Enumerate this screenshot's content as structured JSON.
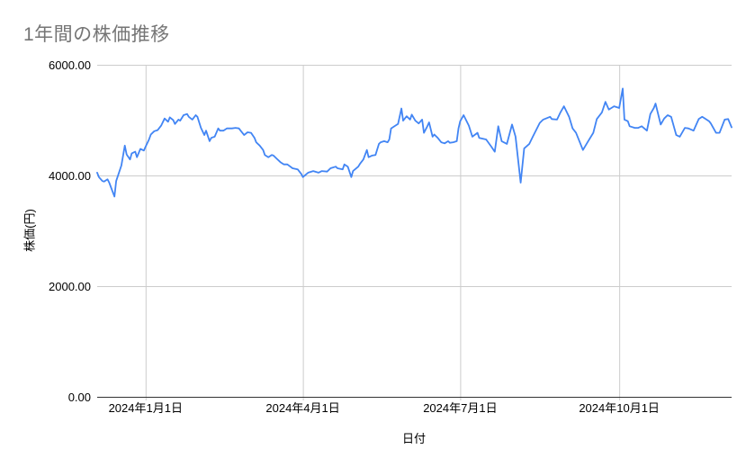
{
  "page": {
    "background_color": "#ffffff"
  },
  "chart_data": {
    "type": "line",
    "title": "1年間の株価推移",
    "xlabel": "日付",
    "ylabel": "株価(円)",
    "ylim": [
      0,
      6000
    ],
    "grid": true,
    "legend": false,
    "colors": {
      "series_line": "#4285f4",
      "title_text": "#757575",
      "axis_text": "#000000",
      "gridline": "#cccccc",
      "baseline_axis": "#333333"
    },
    "y_ticks": [
      {
        "value": 0,
        "label": "0.00"
      },
      {
        "value": 2000,
        "label": "2000.00"
      },
      {
        "value": 4000,
        "label": "4000.00"
      },
      {
        "value": 6000,
        "label": "6000.00"
      }
    ],
    "x_axis": {
      "domain_days": [
        0,
        367
      ],
      "start_date": "2023-12-04",
      "end_date": "2024-12-04",
      "ticks": [
        {
          "day": 28,
          "label": "2024年1月1日"
        },
        {
          "day": 119,
          "label": "2024年4月1日"
        },
        {
          "day": 210,
          "label": "2024年7月1日"
        },
        {
          "day": 302,
          "label": "2024年10月1日"
        }
      ]
    },
    "series": [
      {
        "name": "株価",
        "points_day_value": [
          [
            0,
            4050
          ],
          [
            1,
            3970
          ],
          [
            3,
            3900
          ],
          [
            4,
            3890
          ],
          [
            6,
            3930
          ],
          [
            7,
            3870
          ],
          [
            9,
            3700
          ],
          [
            10,
            3620
          ],
          [
            11,
            3900
          ],
          [
            14,
            4180
          ],
          [
            16,
            4540
          ],
          [
            17,
            4380
          ],
          [
            19,
            4290
          ],
          [
            20,
            4400
          ],
          [
            22,
            4430
          ],
          [
            23,
            4330
          ],
          [
            25,
            4480
          ],
          [
            27,
            4450
          ],
          [
            28,
            4520
          ],
          [
            30,
            4650
          ],
          [
            31,
            4740
          ],
          [
            33,
            4800
          ],
          [
            35,
            4820
          ],
          [
            37,
            4900
          ],
          [
            39,
            5030
          ],
          [
            41,
            4970
          ],
          [
            42,
            5050
          ],
          [
            44,
            5000
          ],
          [
            45,
            4930
          ],
          [
            47,
            5010
          ],
          [
            48,
            4990
          ],
          [
            50,
            5090
          ],
          [
            52,
            5110
          ],
          [
            53,
            5060
          ],
          [
            55,
            5010
          ],
          [
            57,
            5090
          ],
          [
            58,
            5060
          ],
          [
            60,
            4860
          ],
          [
            62,
            4730
          ],
          [
            63,
            4810
          ],
          [
            65,
            4620
          ],
          [
            66,
            4680
          ],
          [
            68,
            4700
          ],
          [
            70,
            4850
          ],
          [
            71,
            4810
          ],
          [
            73,
            4810
          ],
          [
            75,
            4850
          ],
          [
            77,
            4850
          ],
          [
            78,
            4850
          ],
          [
            80,
            4860
          ],
          [
            82,
            4850
          ],
          [
            83,
            4810
          ],
          [
            85,
            4730
          ],
          [
            87,
            4780
          ],
          [
            89,
            4770
          ],
          [
            91,
            4680
          ],
          [
            92,
            4600
          ],
          [
            94,
            4540
          ],
          [
            96,
            4460
          ],
          [
            97,
            4370
          ],
          [
            99,
            4330
          ],
          [
            101,
            4370
          ],
          [
            102,
            4360
          ],
          [
            104,
            4300
          ],
          [
            106,
            4240
          ],
          [
            108,
            4200
          ],
          [
            110,
            4200
          ],
          [
            113,
            4130
          ],
          [
            116,
            4110
          ],
          [
            118,
            4030
          ],
          [
            119,
            3970
          ],
          [
            122,
            4050
          ],
          [
            125,
            4080
          ],
          [
            128,
            4050
          ],
          [
            130,
            4080
          ],
          [
            133,
            4070
          ],
          [
            135,
            4130
          ],
          [
            138,
            4160
          ],
          [
            139,
            4130
          ],
          [
            142,
            4110
          ],
          [
            143,
            4200
          ],
          [
            145,
            4160
          ],
          [
            147,
            3970
          ],
          [
            148,
            4080
          ],
          [
            151,
            4160
          ],
          [
            152,
            4210
          ],
          [
            154,
            4290
          ],
          [
            156,
            4460
          ],
          [
            157,
            4330
          ],
          [
            159,
            4360
          ],
          [
            161,
            4370
          ],
          [
            163,
            4570
          ],
          [
            164,
            4600
          ],
          [
            166,
            4620
          ],
          [
            168,
            4600
          ],
          [
            169,
            4650
          ],
          [
            170,
            4850
          ],
          [
            172,
            4890
          ],
          [
            174,
            4930
          ],
          [
            176,
            5210
          ],
          [
            177,
            4990
          ],
          [
            179,
            5070
          ],
          [
            181,
            5010
          ],
          [
            182,
            5100
          ],
          [
            184,
            4990
          ],
          [
            186,
            4940
          ],
          [
            188,
            5010
          ],
          [
            189,
            4770
          ],
          [
            191,
            4890
          ],
          [
            192,
            4960
          ],
          [
            194,
            4700
          ],
          [
            195,
            4740
          ],
          [
            197,
            4680
          ],
          [
            199,
            4600
          ],
          [
            201,
            4580
          ],
          [
            203,
            4620
          ],
          [
            204,
            4590
          ],
          [
            206,
            4600
          ],
          [
            208,
            4620
          ],
          [
            209,
            4850
          ],
          [
            210,
            4980
          ],
          [
            212,
            5090
          ],
          [
            215,
            4900
          ],
          [
            217,
            4700
          ],
          [
            220,
            4770
          ],
          [
            221,
            4680
          ],
          [
            225,
            4650
          ],
          [
            228,
            4520
          ],
          [
            230,
            4430
          ],
          [
            232,
            4890
          ],
          [
            234,
            4620
          ],
          [
            237,
            4570
          ],
          [
            240,
            4920
          ],
          [
            242,
            4700
          ],
          [
            245,
            3870
          ],
          [
            247,
            4490
          ],
          [
            250,
            4570
          ],
          [
            252,
            4700
          ],
          [
            256,
            4950
          ],
          [
            258,
            5010
          ],
          [
            262,
            5060
          ],
          [
            263,
            5020
          ],
          [
            266,
            5010
          ],
          [
            268,
            5140
          ],
          [
            270,
            5250
          ],
          [
            273,
            5060
          ],
          [
            275,
            4850
          ],
          [
            277,
            4770
          ],
          [
            281,
            4460
          ],
          [
            284,
            4620
          ],
          [
            287,
            4770
          ],
          [
            289,
            5020
          ],
          [
            292,
            5140
          ],
          [
            294,
            5330
          ],
          [
            296,
            5190
          ],
          [
            299,
            5250
          ],
          [
            302,
            5220
          ],
          [
            304,
            5570
          ],
          [
            305,
            5010
          ],
          [
            307,
            4980
          ],
          [
            308,
            4890
          ],
          [
            311,
            4860
          ],
          [
            313,
            4860
          ],
          [
            315,
            4890
          ],
          [
            318,
            4810
          ],
          [
            320,
            5110
          ],
          [
            322,
            5220
          ],
          [
            323,
            5300
          ],
          [
            326,
            4920
          ],
          [
            328,
            5030
          ],
          [
            330,
            5090
          ],
          [
            332,
            5060
          ],
          [
            335,
            4730
          ],
          [
            337,
            4700
          ],
          [
            340,
            4860
          ],
          [
            342,
            4850
          ],
          [
            345,
            4810
          ],
          [
            348,
            5020
          ],
          [
            350,
            5060
          ],
          [
            352,
            5020
          ],
          [
            354,
            4980
          ],
          [
            355,
            4940
          ],
          [
            358,
            4770
          ],
          [
            360,
            4770
          ],
          [
            363,
            5010
          ],
          [
            365,
            5020
          ],
          [
            367,
            4870
          ]
        ]
      }
    ]
  }
}
